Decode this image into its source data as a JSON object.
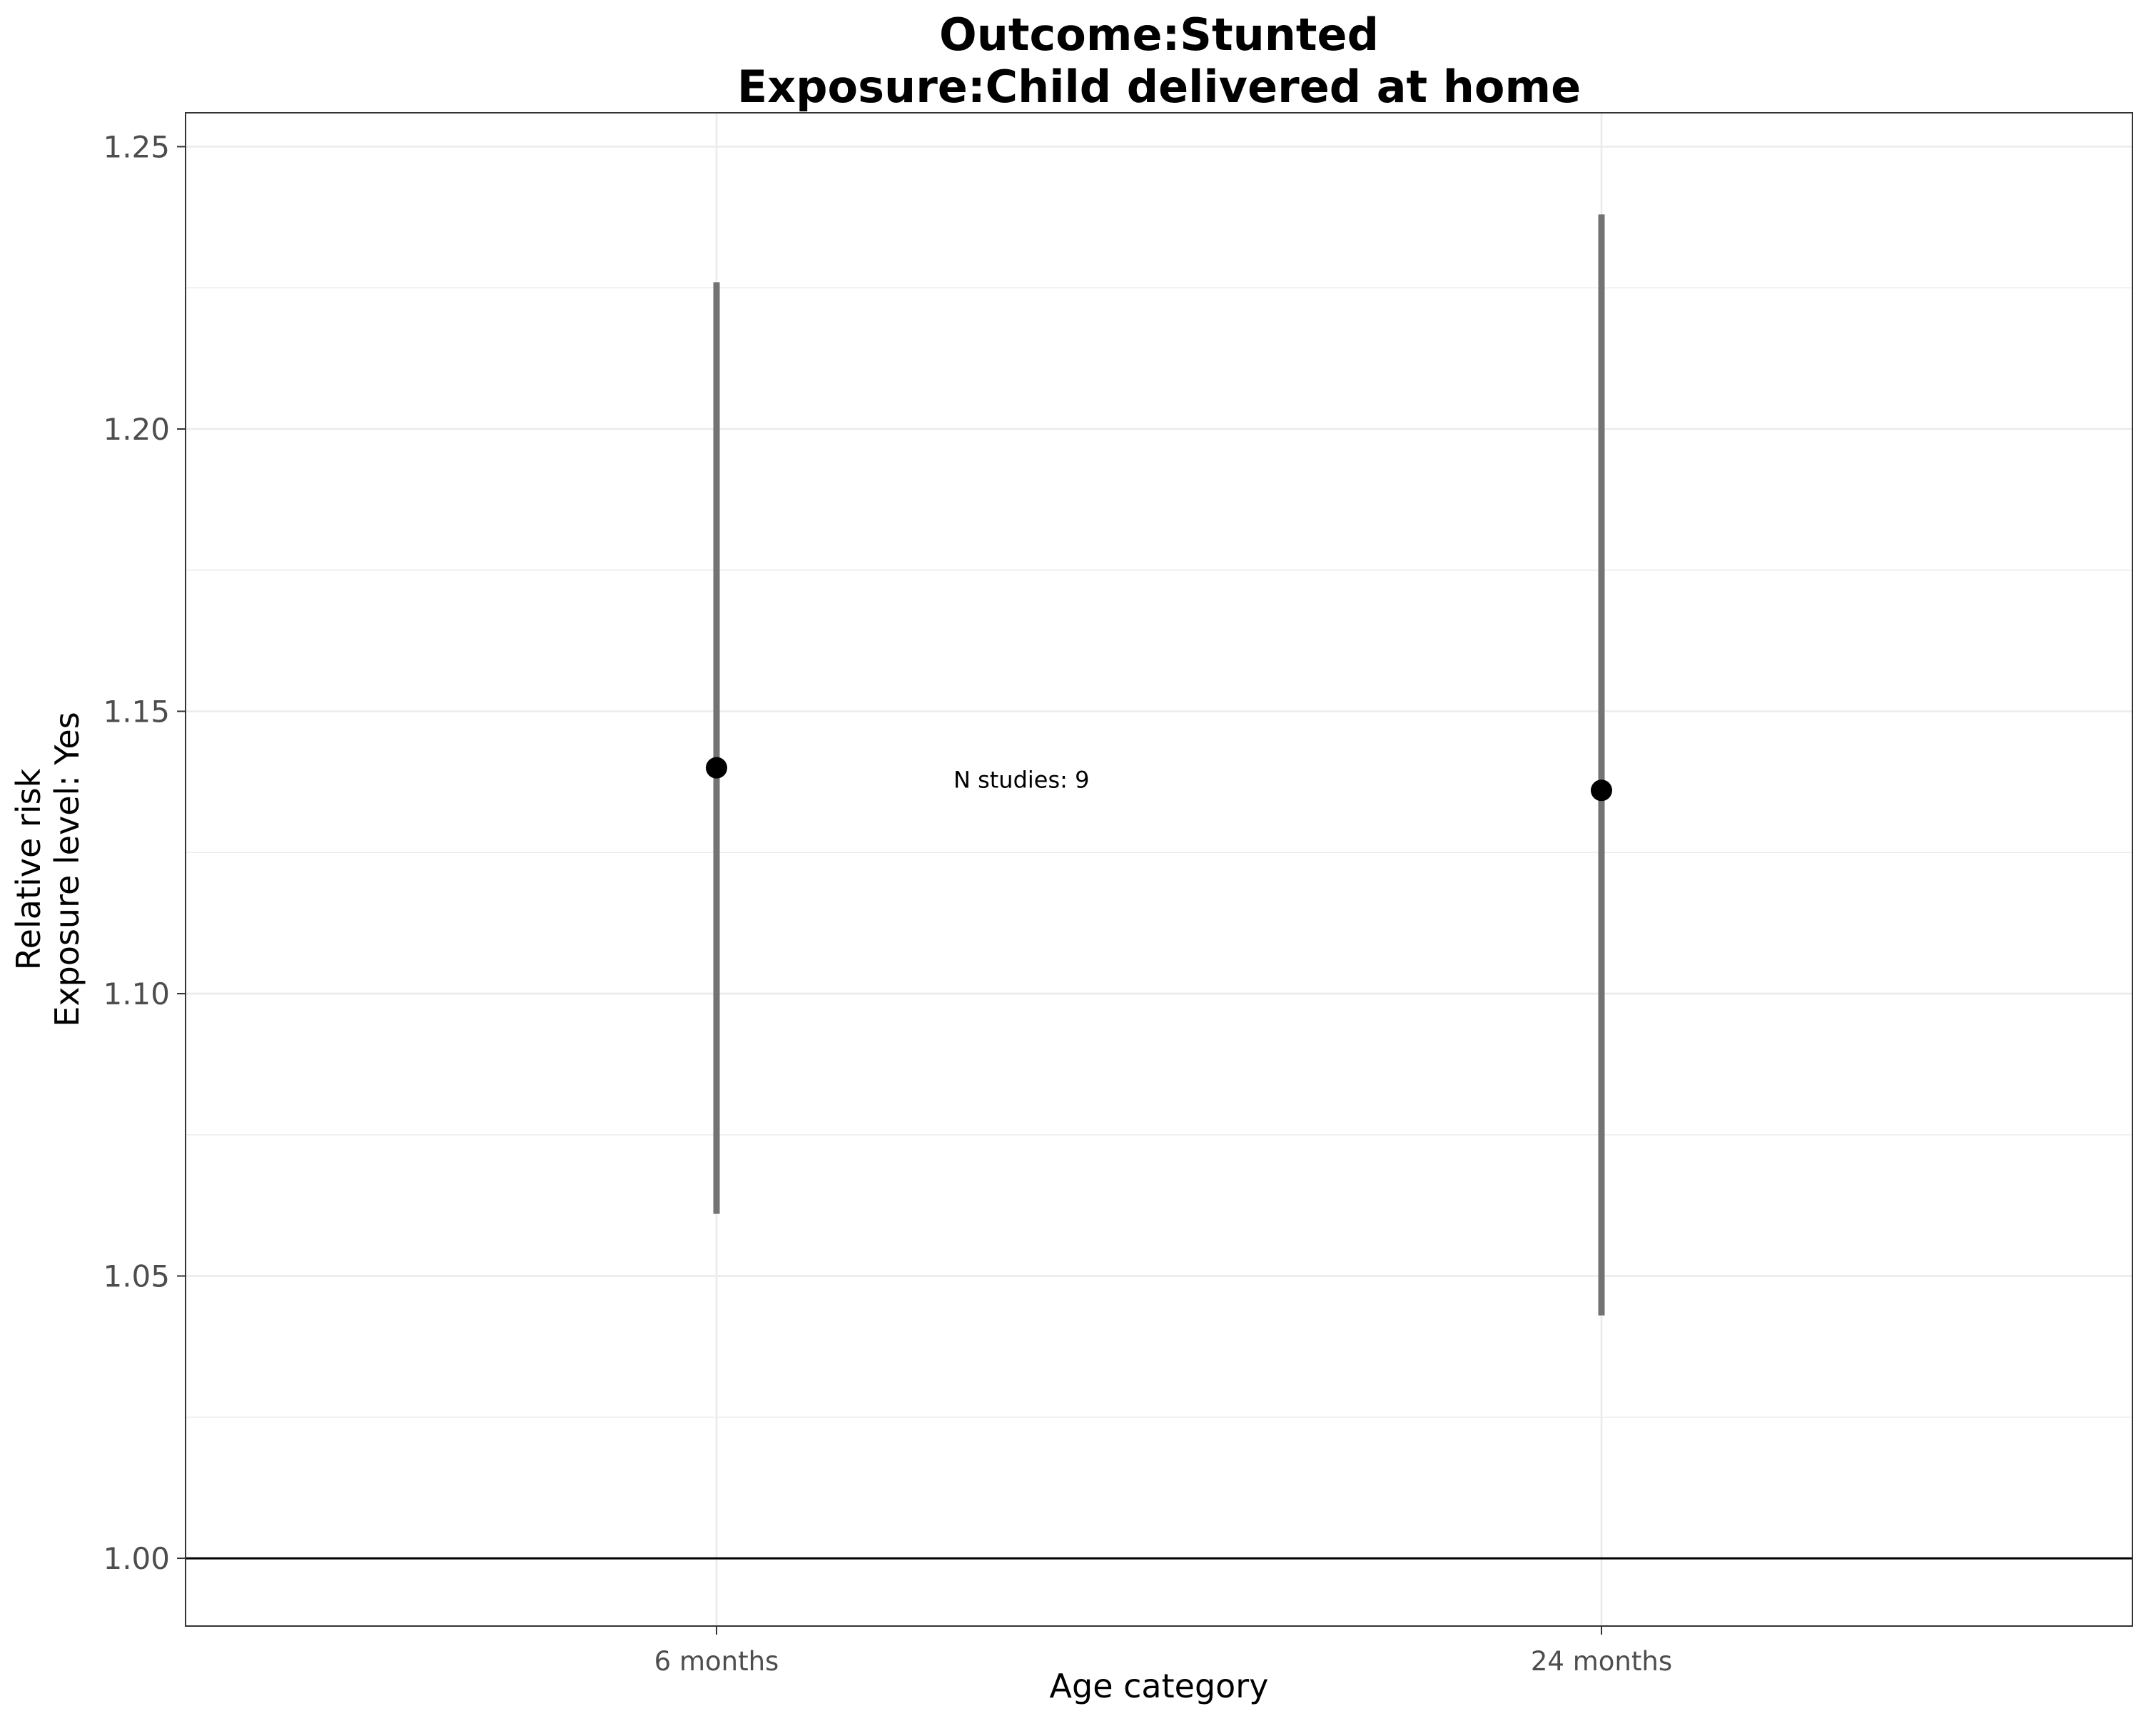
{
  "chart_data": {
    "type": "scatter",
    "title": [
      "Outcome:Stunted",
      "Exposure:Child delivered at home"
    ],
    "xlabel": "Age category",
    "ylabel": [
      "Relative risk",
      "Exposure level: Yes"
    ],
    "categories": [
      "6 months",
      "24 months"
    ],
    "ylim": [
      0.988,
      1.256
    ],
    "yticks": [
      "1.00",
      "1.05",
      "1.10",
      "1.15",
      "1.20",
      "1.25"
    ],
    "reference_line": 1.0,
    "grid": true,
    "series": [
      {
        "points": [
          {
            "x": "6 months",
            "y": 1.14,
            "ci_low": 1.061,
            "ci_high": 1.226
          },
          {
            "x": "24 months",
            "y": 1.136,
            "ci_low": 1.043,
            "ci_high": 1.238
          }
        ]
      }
    ],
    "annotations": [
      {
        "text": "N studies: 9",
        "x": 1.28,
        "y": 1.138
      }
    ],
    "colors": {
      "point": "#000000",
      "errorbar": "#737373",
      "grid": "#ebebeb",
      "reference_line": "#000000",
      "panel_border": "#333333",
      "tick_label": "#4d4d4d"
    }
  }
}
